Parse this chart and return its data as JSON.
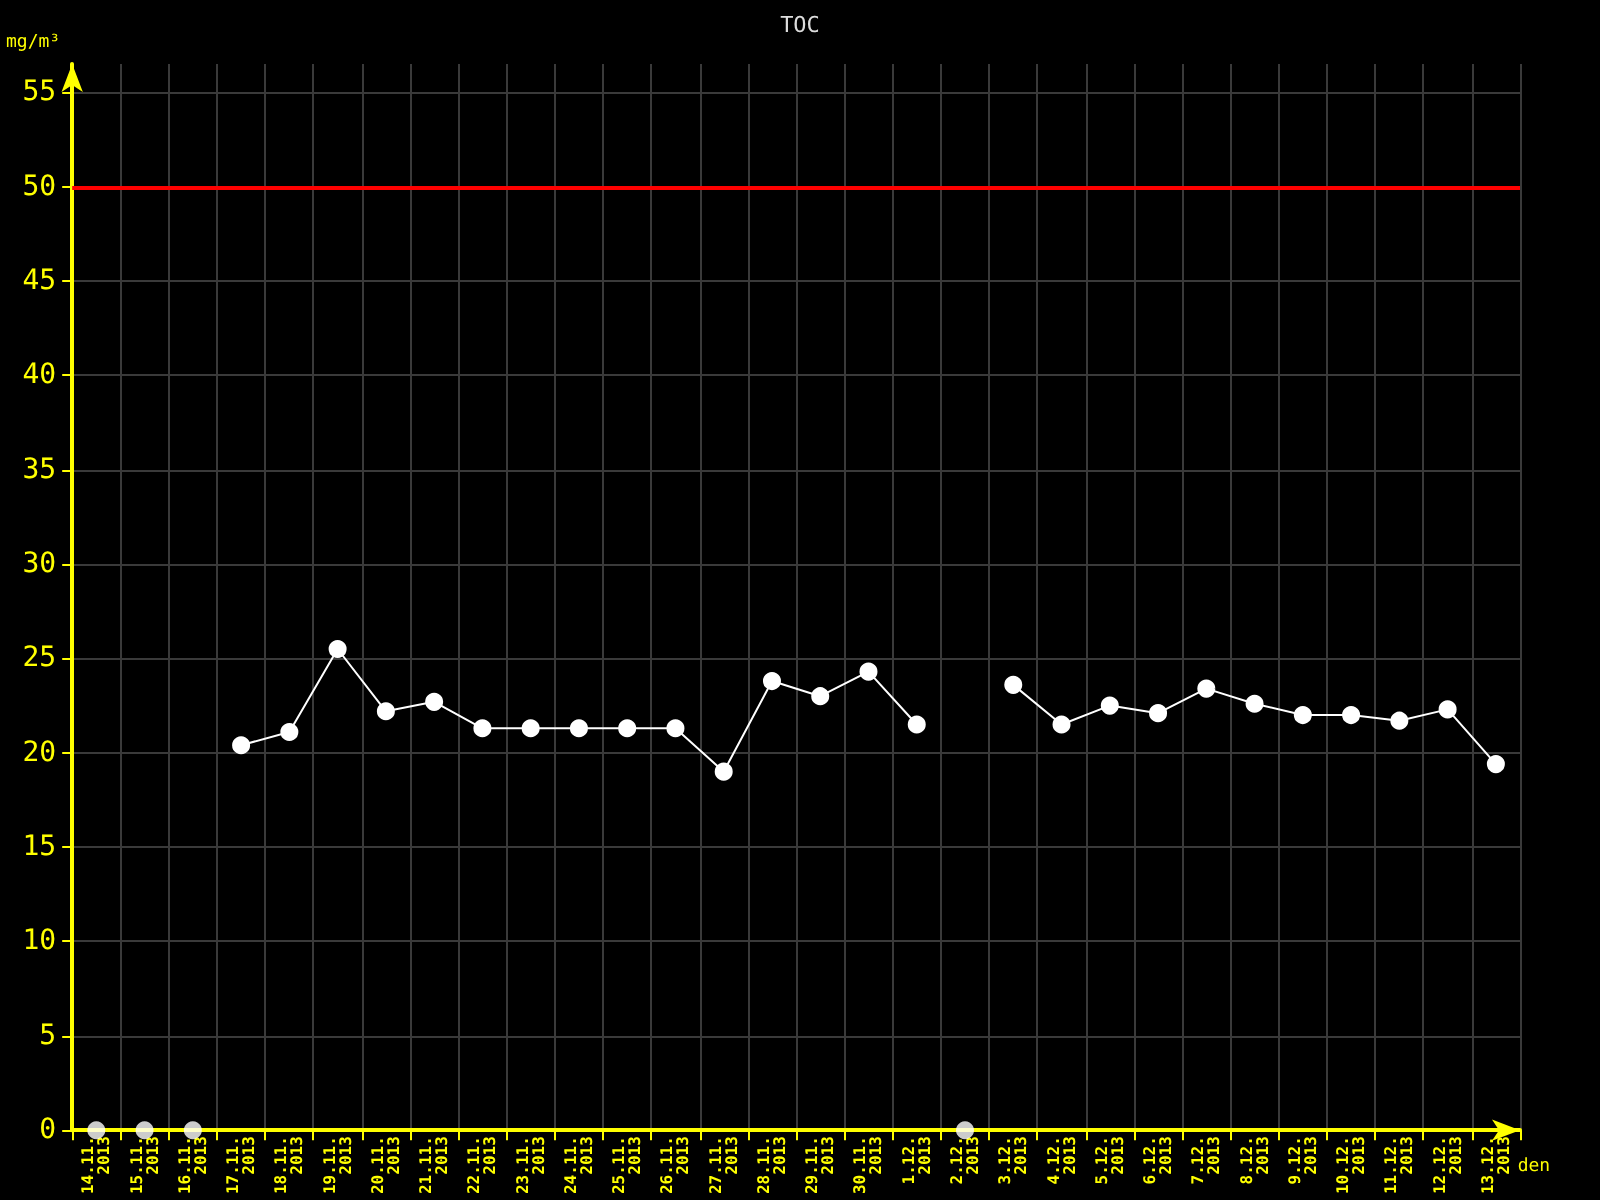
{
  "chart_data": {
    "type": "line",
    "title": "TOC",
    "xlabel": "den",
    "ylabel": "mg/m³",
    "categories": [
      "14.11.\n2013",
      "15.11.\n2013",
      "16.11.\n2013",
      "17.11.\n2013",
      "18.11.\n2013",
      "19.11.\n2013",
      "20.11.\n2013",
      "21.11.\n2013",
      "22.11.\n2013",
      "23.11.\n2013",
      "24.11.\n2013",
      "25.11.\n2013",
      "26.11.\n2013",
      "27.11.\n2013",
      "28.11.\n2013",
      "29.11.\n2013",
      "30.11.\n2013",
      "1.12.\n2013",
      "2.12.\n2013",
      "3.12.\n2013",
      "4.12.\n2013",
      "5.12.\n2013",
      "6.12.\n2013",
      "7.12.\n2013",
      "8.12.\n2013",
      "9.12.\n2013",
      "10.12.\n2013",
      "11.12.\n2013",
      "12.12.\n2013",
      "13.12.\n2013"
    ],
    "series": [
      {
        "color": "#ffffff",
        "marker": "circle",
        "values": [
          null,
          null,
          null,
          20.4,
          21.1,
          25.5,
          22.2,
          22.7,
          21.3,
          21.3,
          21.3,
          21.3,
          21.3,
          19.0,
          23.8,
          23.0,
          24.3,
          21.5,
          null,
          23.6,
          21.5,
          22.5,
          22.1,
          23.4,
          22.6,
          22.0,
          22.0,
          21.7,
          22.3,
          19.4
        ]
      },
      {
        "type": "scatter",
        "color": "#ffffff",
        "marker": "circle",
        "values": [
          0,
          0,
          0,
          null,
          null,
          null,
          null,
          null,
          null,
          null,
          null,
          null,
          null,
          null,
          null,
          null,
          null,
          null,
          0,
          null,
          null,
          null,
          null,
          null,
          null,
          null,
          null,
          null,
          null,
          null
        ]
      }
    ],
    "ylim": [
      0,
      56.5
    ],
    "yticks": [
      0,
      5,
      10,
      15,
      20,
      25,
      30,
      35,
      40,
      45,
      50,
      55
    ],
    "grid": true,
    "ref_lines": [
      {
        "axis": "y",
        "value": 50,
        "color": "#ff0000"
      }
    ]
  }
}
